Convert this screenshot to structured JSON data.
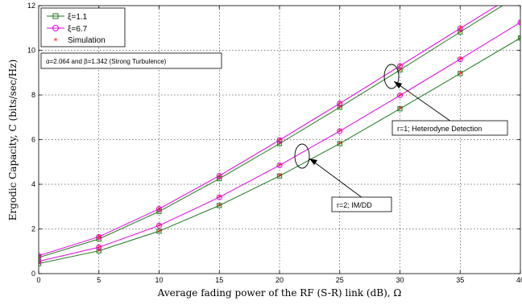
{
  "chart_data": {
    "type": "line",
    "xlabel": "Average fading power of the RF (S-R) link (dB), Ω",
    "ylabel": "Ergodic Capacity, C (bits/sec/Hz)",
    "xlim": [
      0,
      40
    ],
    "ylim": [
      0,
      12
    ],
    "xticks": [
      0,
      5,
      10,
      15,
      20,
      25,
      30,
      35,
      40
    ],
    "yticks": [
      0,
      2,
      4,
      6,
      8,
      10,
      12
    ],
    "grid": true,
    "legend_position": "top-left",
    "legend": [
      {
        "label": "ξ=1.1",
        "color": "#1a7a1a",
        "marker": "square"
      },
      {
        "label": "ξ=6.7",
        "color": "#e000e0",
        "marker": "circle"
      },
      {
        "label": "Simulation",
        "color": "#ff0000",
        "marker": "star"
      }
    ],
    "x": [
      0,
      5,
      10,
      15,
      20,
      25,
      30,
      35,
      40
    ],
    "series": [
      {
        "group": "r=1",
        "xi": "1.1",
        "color": "#1a7a1a",
        "marker": "square",
        "values": [
          0.72,
          1.55,
          2.78,
          4.25,
          5.82,
          7.45,
          9.12,
          10.82,
          12.5
        ]
      },
      {
        "group": "r=1",
        "xi": "6.7",
        "color": "#e000e0",
        "marker": "circle",
        "values": [
          0.8,
          1.65,
          2.9,
          4.38,
          5.98,
          7.62,
          9.3,
          10.98,
          12.65
        ]
      },
      {
        "group": "r=2",
        "xi": "1.1",
        "color": "#1a7a1a",
        "marker": "square",
        "values": [
          0.45,
          1.02,
          1.9,
          3.05,
          4.37,
          5.82,
          7.38,
          8.96,
          10.55
        ]
      },
      {
        "group": "r=2",
        "xi": "6.7",
        "color": "#e000e0",
        "marker": "circle",
        "values": [
          0.55,
          1.18,
          2.15,
          3.42,
          4.85,
          6.38,
          7.98,
          9.6,
          11.25
        ]
      }
    ],
    "annotations": {
      "params": "α=2.064 and β=1.342 (Strong Turbulence)",
      "heterodyne": "r=1; Heterodyne Detection",
      "imdd": "r=2; IM/DD"
    }
  }
}
